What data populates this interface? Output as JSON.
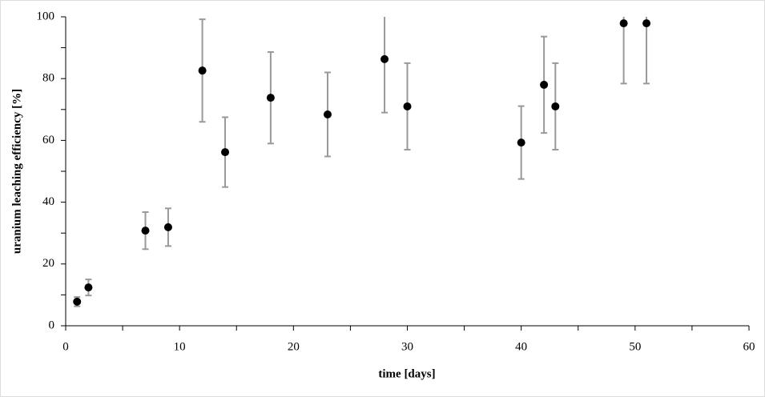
{
  "chart_data": {
    "type": "scatter",
    "xlabel": "time [days]",
    "ylabel": "uranium leaching efficiency [%]",
    "x": [
      1,
      2,
      7,
      9,
      12,
      14,
      18,
      23,
      28,
      30,
      40,
      42,
      43,
      49,
      51
    ],
    "values": [
      7.8,
      12.4,
      30.8,
      31.9,
      82.6,
      56.2,
      73.8,
      68.4,
      86.3,
      71,
      59.3,
      78,
      71,
      97.9,
      97.9
    ],
    "errors": [
      1.5,
      2.6,
      6,
      6.1,
      16.6,
      11.3,
      14.8,
      13.6,
      17.3,
      14,
      11.8,
      15.6,
      14,
      19.5,
      19.5
    ],
    "color": "#000000",
    "error_color": "#999999",
    "xlim": [
      0,
      60
    ],
    "xticks": [
      0,
      10,
      20,
      30,
      40,
      50,
      60
    ],
    "xminorticks": [
      5,
      15,
      25,
      35,
      45,
      55
    ],
    "ylim": [
      0,
      100
    ],
    "yticks": [
      0,
      20,
      40,
      60,
      80,
      100
    ],
    "yminorticks": [
      10,
      30,
      50,
      70,
      90
    ]
  }
}
